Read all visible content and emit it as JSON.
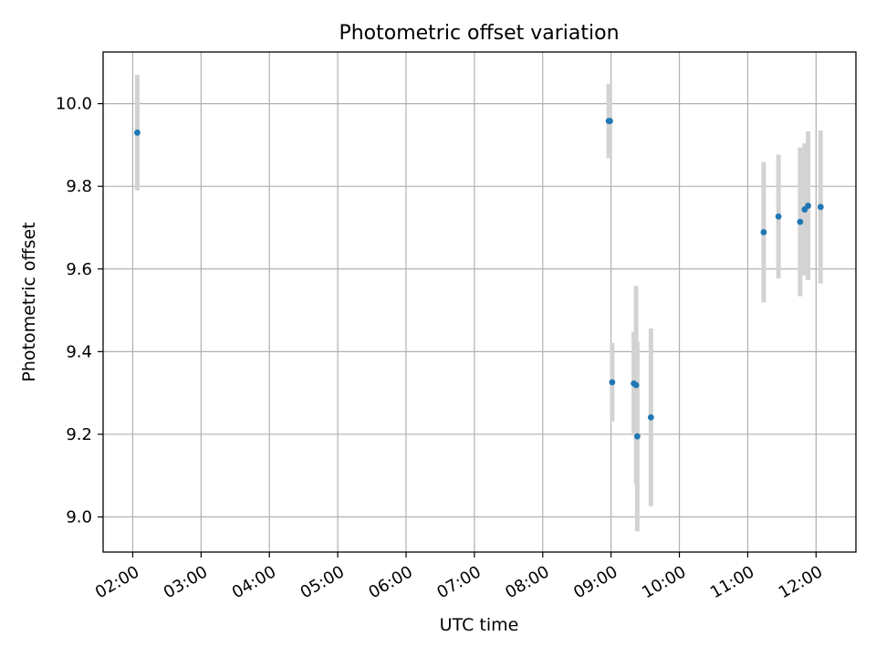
{
  "chart_data": {
    "type": "scatter",
    "title": "Photometric offset variation",
    "xlabel": "UTC time",
    "ylabel": "Photometric offset",
    "x_axis": "time",
    "xlim": [
      "01:34",
      "12:35"
    ],
    "ylim": [
      8.915,
      10.125
    ],
    "x_ticks": [
      "02:00",
      "03:00",
      "04:00",
      "05:00",
      "06:00",
      "07:00",
      "08:00",
      "09:00",
      "10:00",
      "11:00",
      "12:00"
    ],
    "y_ticks": [
      "9.0",
      "9.2",
      "9.4",
      "9.6",
      "9.8",
      "10.0"
    ],
    "grid": true,
    "legend": "none",
    "series": [
      {
        "marker_color": "#1f77b4",
        "errorbar_color": "#d3d3d3",
        "points": [
          {
            "x": "02:04",
            "y": 9.93,
            "err": 0.14
          },
          {
            "x": "08:58",
            "y": 9.958,
            "err": 0.09
          },
          {
            "x": "08:59",
            "y": 9.958,
            "err": 0.09
          },
          {
            "x": "09:01",
            "y": 9.326,
            "err": 0.095
          },
          {
            "x": "09:20",
            "y": 9.323,
            "err": 0.125
          },
          {
            "x": "09:22",
            "y": 9.319,
            "err": 0.24
          },
          {
            "x": "09:23",
            "y": 9.195,
            "err": 0.23
          },
          {
            "x": "09:35",
            "y": 9.241,
            "err": 0.215
          },
          {
            "x": "11:14",
            "y": 9.689,
            "err": 0.17
          },
          {
            "x": "11:27",
            "y": 9.727,
            "err": 0.15
          },
          {
            "x": "11:46",
            "y": 9.714,
            "err": 0.18
          },
          {
            "x": "11:50",
            "y": 9.744,
            "err": 0.16
          },
          {
            "x": "11:53",
            "y": 9.753,
            "err": 0.18
          },
          {
            "x": "12:04",
            "y": 9.75,
            "err": 0.185
          }
        ]
      }
    ]
  }
}
